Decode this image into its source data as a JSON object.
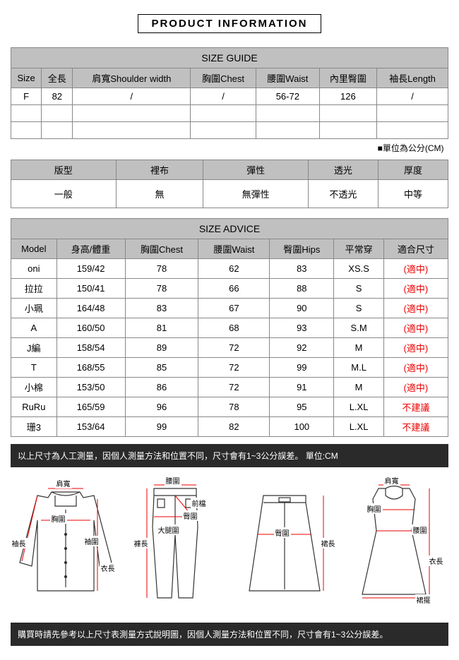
{
  "title": "PRODUCT INFORMATION",
  "sizeGuide": {
    "heading": "SIZE GUIDE",
    "columns": [
      "Size",
      "全長",
      "肩寬Shoulder width",
      "胸圍Chest",
      "腰圍Waist",
      "內里臀圍",
      "袖長Length"
    ],
    "rows": [
      [
        "F",
        "82",
        "/",
        "/",
        "56-72",
        "126",
        "/"
      ],
      [
        "",
        "",
        "",
        "",
        "",
        "",
        ""
      ],
      [
        "",
        "",
        "",
        "",
        "",
        "",
        ""
      ]
    ],
    "unitNote": "■單位為公分(CM)"
  },
  "fabricInfo": {
    "columns": [
      "版型",
      "裡布",
      "彈性",
      "透光",
      "厚度"
    ],
    "values": [
      "一般",
      "無",
      "無彈性",
      "不透光",
      "中等"
    ]
  },
  "sizeAdvice": {
    "heading": "SIZE ADVICE",
    "columns": [
      "Model",
      "身高/體重",
      "胸圍Chest",
      "腰圍Waist",
      "臀圍Hips",
      "平常穿",
      "適合尺寸"
    ],
    "rows": [
      {
        "cells": [
          "oni",
          "159/42",
          "78",
          "62",
          "83",
          "XS.S",
          "(適中)"
        ],
        "fitClass": "red"
      },
      {
        "cells": [
          "拉拉",
          "150/41",
          "78",
          "66",
          "88",
          "S",
          "(適中)"
        ],
        "fitClass": "red"
      },
      {
        "cells": [
          "小珮",
          "164/48",
          "83",
          "67",
          "90",
          "S",
          "(適中)"
        ],
        "fitClass": "red"
      },
      {
        "cells": [
          "A",
          "160/50",
          "81",
          "68",
          "93",
          "S.M",
          "(適中)"
        ],
        "fitClass": "red"
      },
      {
        "cells": [
          "J編",
          "158/54",
          "89",
          "72",
          "92",
          "M",
          "(適中)"
        ],
        "fitClass": "red"
      },
      {
        "cells": [
          "T",
          "168/55",
          "85",
          "72",
          "99",
          "M.L",
          "(適中)"
        ],
        "fitClass": "red"
      },
      {
        "cells": [
          "小棉",
          "153/50",
          "86",
          "72",
          "91",
          "M",
          "(適中)"
        ],
        "fitClass": "red"
      },
      {
        "cells": [
          "RuRu",
          "165/59",
          "96",
          "78",
          "95",
          "L.XL",
          "不建議"
        ],
        "fitClass": "red"
      },
      {
        "cells": [
          "珊3",
          "153/64",
          "99",
          "82",
          "100",
          "L.XL",
          "不建議"
        ],
        "fitClass": "red"
      }
    ]
  },
  "notes": {
    "top": "以上尺寸為人工測量，因個人測量方法和位置不同，尺寸會有1~3公分誤差。 單位:CM",
    "bottom": "購買時請先參考以上尺寸表測量方式說明圖，因個人測量方法和位置不同，尺寸會有1~3公分誤差。"
  },
  "diagrams": {
    "shirt": {
      "labels": {
        "shoulder": "肩寬",
        "chest": "胸圍",
        "sleeve": "袖長",
        "cuff": "袖圍",
        "length": "衣長"
      }
    },
    "pants": {
      "labels": {
        "waist": "腰圍",
        "front": "前檔",
        "hip": "臀圍",
        "thigh": "大腿圍",
        "length": "褲長"
      }
    },
    "skirt": {
      "labels": {
        "hip": "臀圍",
        "length": "裙長"
      }
    },
    "dress": {
      "labels": {
        "shoulder": "肩寬",
        "chest": "胸圍",
        "waist": "腰圍",
        "length": "衣長",
        "hem": "裙擺"
      }
    }
  },
  "colors": {
    "line": "#333",
    "measure": "#e00",
    "headerBg": "#c0c0c0"
  }
}
